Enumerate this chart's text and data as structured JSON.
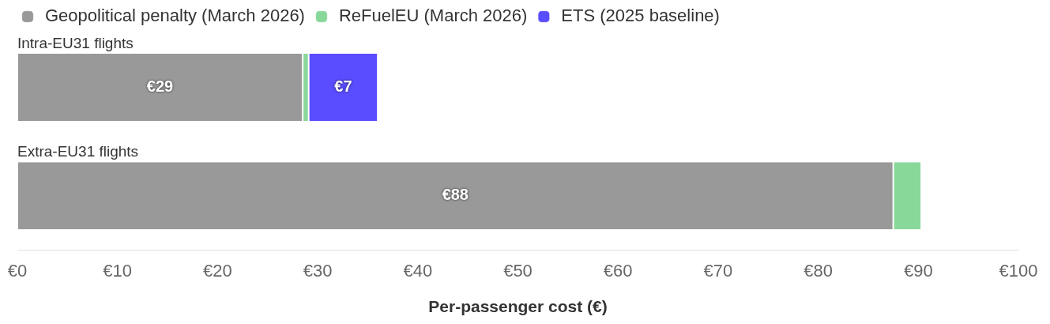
{
  "chart_data": {
    "type": "bar",
    "orientation": "horizontal",
    "stacked": true,
    "xlabel": "Per-passenger cost (€)",
    "categories": [
      "Intra-EU31 flights",
      "Extra-EU31 flights"
    ],
    "series": [
      {
        "name": "Geopolitical penalty (March 2026)",
        "color": "#999999",
        "values": [
          28.5,
          87.5
        ],
        "value_labels": [
          "€29",
          "€88"
        ]
      },
      {
        "name": "ReFuelEU (March 2026)",
        "color": "#88d89a",
        "values": [
          0.6,
          2.8
        ]
      },
      {
        "name": "ETS (2025 baseline)",
        "color": "#5a4dff",
        "values": [
          6.9,
          null
        ],
        "value_labels": [
          "€7",
          null
        ]
      }
    ],
    "xlim": [
      0,
      100
    ],
    "xticks": [
      {
        "value": 0,
        "label": "€0"
      },
      {
        "value": 10,
        "label": "€10"
      },
      {
        "value": 20,
        "label": "€20"
      },
      {
        "value": 30,
        "label": "€30"
      },
      {
        "value": 40,
        "label": "€40"
      },
      {
        "value": 50,
        "label": "€50"
      },
      {
        "value": 60,
        "label": "€60"
      },
      {
        "value": 70,
        "label": "€70"
      },
      {
        "value": 80,
        "label": "€80"
      },
      {
        "value": 90,
        "label": "€90"
      },
      {
        "value": 100,
        "label": "€100"
      }
    ],
    "grid": false,
    "legend": "top left"
  }
}
